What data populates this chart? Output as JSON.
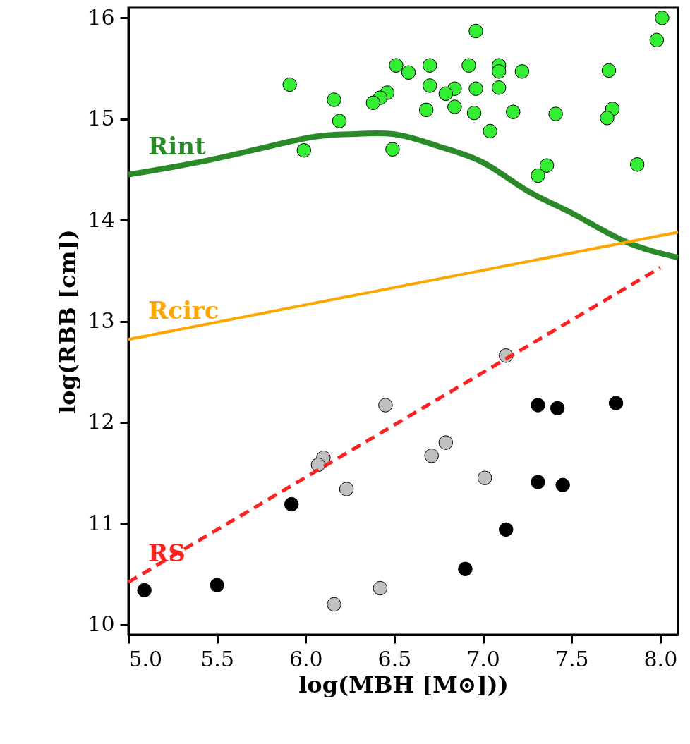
{
  "chart_data": {
    "type": "scatter",
    "xlabel": "log(MBH [M⊙]))",
    "ylabel": "log(RBB [cm])",
    "xlim": [
      5.0,
      8.1
    ],
    "ylim": [
      9.9,
      16.1
    ],
    "xticks": [
      {
        "value": 5.0,
        "label": "5.0"
      },
      5.5,
      {
        "value": 6.0,
        "label": "6.0"
      },
      6.5,
      {
        "value": 7.0,
        "label": "7.0"
      },
      7.5,
      {
        "value": 8.0,
        "label": "8.0"
      }
    ],
    "yticks": [
      10,
      11,
      12,
      13,
      14,
      15,
      16
    ],
    "grid": false,
    "series": [
      {
        "marker": "circle",
        "color": "#33ee33",
        "x": [
          5.91,
          6.16,
          6.19,
          5.99,
          6.51,
          6.58,
          6.46,
          6.42,
          6.38,
          6.7,
          6.7,
          6.68,
          6.49,
          6.84,
          6.79,
          6.84,
          6.92,
          6.96,
          6.96,
          6.95,
          7.04,
          7.09,
          7.09,
          7.09,
          7.22,
          7.17,
          7.41,
          7.36,
          7.31,
          7.71,
          7.73,
          7.7,
          7.87,
          7.98,
          8.01
        ],
        "values": [
          15.34,
          15.19,
          14.98,
          14.69,
          15.53,
          15.46,
          15.26,
          15.21,
          15.16,
          15.53,
          15.33,
          15.09,
          14.7,
          15.3,
          15.25,
          15.12,
          15.53,
          15.87,
          15.3,
          15.06,
          14.88,
          15.53,
          15.47,
          15.31,
          15.47,
          15.07,
          15.05,
          14.54,
          14.44,
          15.48,
          15.1,
          15.01,
          14.55,
          15.78,
          16.0
        ]
      },
      {
        "marker": "circle",
        "color": "#c0c0c0",
        "x": [
          7.13,
          6.45,
          6.1,
          6.07,
          6.23,
          6.71,
          6.79,
          7.01,
          6.42,
          6.16
        ],
        "values": [
          12.66,
          12.17,
          11.65,
          11.58,
          11.34,
          11.67,
          11.8,
          11.45,
          10.36,
          10.2
        ]
      },
      {
        "marker": "circle",
        "color": "#000000",
        "x": [
          5.09,
          5.5,
          5.92,
          7.31,
          7.42,
          7.75,
          7.31,
          7.45,
          7.13,
          6.9
        ],
        "values": [
          10.34,
          10.39,
          11.19,
          12.17,
          12.14,
          12.19,
          11.41,
          11.38,
          10.94,
          10.55
        ]
      },
      {
        "type": "line",
        "name": "Rint",
        "line_style": "solid",
        "color": "#2a8a2a",
        "x": [
          5.0,
          5.5,
          6.0,
          6.25,
          6.5,
          6.75,
          7.0,
          7.25,
          7.5,
          7.8,
          8.1
        ],
        "values": [
          14.45,
          14.61,
          14.81,
          14.85,
          14.85,
          14.73,
          14.57,
          14.29,
          14.07,
          13.79,
          13.63
        ]
      },
      {
        "type": "line",
        "name": "Rcirc",
        "line_style": "solid",
        "color": "#ffa500",
        "x": [
          5.0,
          8.1
        ],
        "values": [
          12.82,
          13.88
        ]
      },
      {
        "type": "line",
        "name": "RS",
        "line_style": "dashed",
        "color": "#ff2020",
        "x": [
          5.0,
          8.0
        ],
        "values": [
          10.42,
          13.53
        ]
      }
    ]
  }
}
